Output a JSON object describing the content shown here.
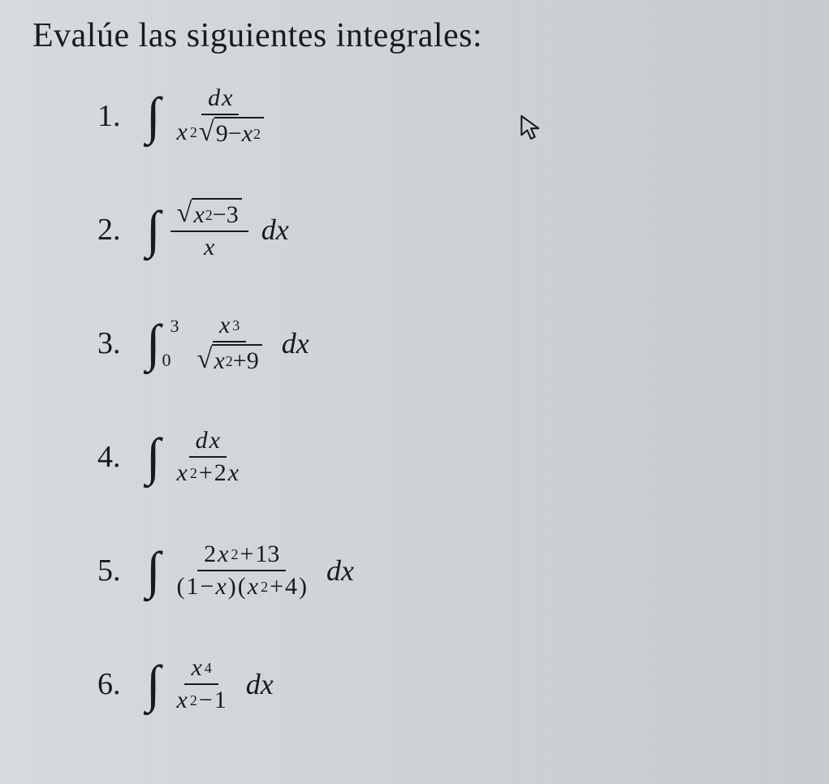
{
  "heading": "Evalúe las siguientes integrales:",
  "problems": [
    {
      "number": "1.",
      "type": "indefinite-fraction",
      "numerator": [
        {
          "t": "var",
          "v": "d"
        },
        {
          "t": "var",
          "v": "x"
        }
      ],
      "denominator": [
        {
          "t": "var",
          "v": "x"
        },
        {
          "t": "sup",
          "v": "2"
        },
        {
          "t": "sqrt",
          "content": [
            {
              "t": "txt",
              "v": "9"
            },
            {
              "t": "txt",
              "v": "−"
            },
            {
              "t": "var",
              "v": "x"
            },
            {
              "t": "sup",
              "v": "2"
            }
          ]
        }
      ],
      "trailing_dx": false
    },
    {
      "number": "2.",
      "type": "indefinite-fraction",
      "numerator": [
        {
          "t": "sqrt",
          "content": [
            {
              "t": "var",
              "v": "x"
            },
            {
              "t": "sup",
              "v": "2"
            },
            {
              "t": "txt",
              "v": "−"
            },
            {
              "t": "txt",
              "v": "3"
            }
          ]
        }
      ],
      "denominator": [
        {
          "t": "var",
          "v": "x"
        }
      ],
      "trailing_dx": true
    },
    {
      "number": "3.",
      "type": "definite-fraction",
      "lower": "0",
      "upper": "3",
      "numerator": [
        {
          "t": "var",
          "v": "x"
        },
        {
          "t": "sup",
          "v": "3"
        }
      ],
      "denominator": [
        {
          "t": "sqrt",
          "content": [
            {
              "t": "var",
              "v": "x"
            },
            {
              "t": "sup",
              "v": "2"
            },
            {
              "t": "txt",
              "v": "+"
            },
            {
              "t": "txt",
              "v": "9"
            }
          ]
        }
      ],
      "trailing_dx": true
    },
    {
      "number": "4.",
      "type": "indefinite-fraction",
      "numerator": [
        {
          "t": "var",
          "v": "d"
        },
        {
          "t": "var",
          "v": "x"
        }
      ],
      "denominator": [
        {
          "t": "var",
          "v": "x"
        },
        {
          "t": "sup",
          "v": "2"
        },
        {
          "t": "txt",
          "v": "+"
        },
        {
          "t": "txt",
          "v": "2"
        },
        {
          "t": "var",
          "v": "x"
        }
      ],
      "trailing_dx": false
    },
    {
      "number": "5.",
      "type": "indefinite-fraction",
      "numerator": [
        {
          "t": "txt",
          "v": "2"
        },
        {
          "t": "var",
          "v": "x"
        },
        {
          "t": "sup",
          "v": "2"
        },
        {
          "t": "txt",
          "v": "+"
        },
        {
          "t": "txt",
          "v": "13"
        }
      ],
      "denominator": [
        {
          "t": "paren",
          "v": "("
        },
        {
          "t": "txt",
          "v": "1"
        },
        {
          "t": "txt",
          "v": "−"
        },
        {
          "t": "var",
          "v": "x"
        },
        {
          "t": "paren",
          "v": ")"
        },
        {
          "t": "paren",
          "v": "("
        },
        {
          "t": "var",
          "v": "x"
        },
        {
          "t": "sup",
          "v": "2"
        },
        {
          "t": "txt",
          "v": "+"
        },
        {
          "t": "txt",
          "v": "4"
        },
        {
          "t": "paren",
          "v": ")"
        }
      ],
      "trailing_dx": true
    },
    {
      "number": "6.",
      "type": "indefinite-fraction",
      "numerator": [
        {
          "t": "var",
          "v": "x"
        },
        {
          "t": "sup",
          "v": "4"
        }
      ],
      "denominator": [
        {
          "t": "var",
          "v": "x"
        },
        {
          "t": "sup",
          "v": "2"
        },
        {
          "t": "txt",
          "v": "−"
        },
        {
          "t": "txt",
          "v": "1"
        }
      ],
      "trailing_dx": true
    }
  ],
  "dx_label": "dx",
  "colors": {
    "text": "#1a1a1a",
    "background": "#d4d8dc"
  },
  "fonts": {
    "heading_size_pt": 32,
    "body_size_pt": 28,
    "family": "Times New Roman"
  }
}
